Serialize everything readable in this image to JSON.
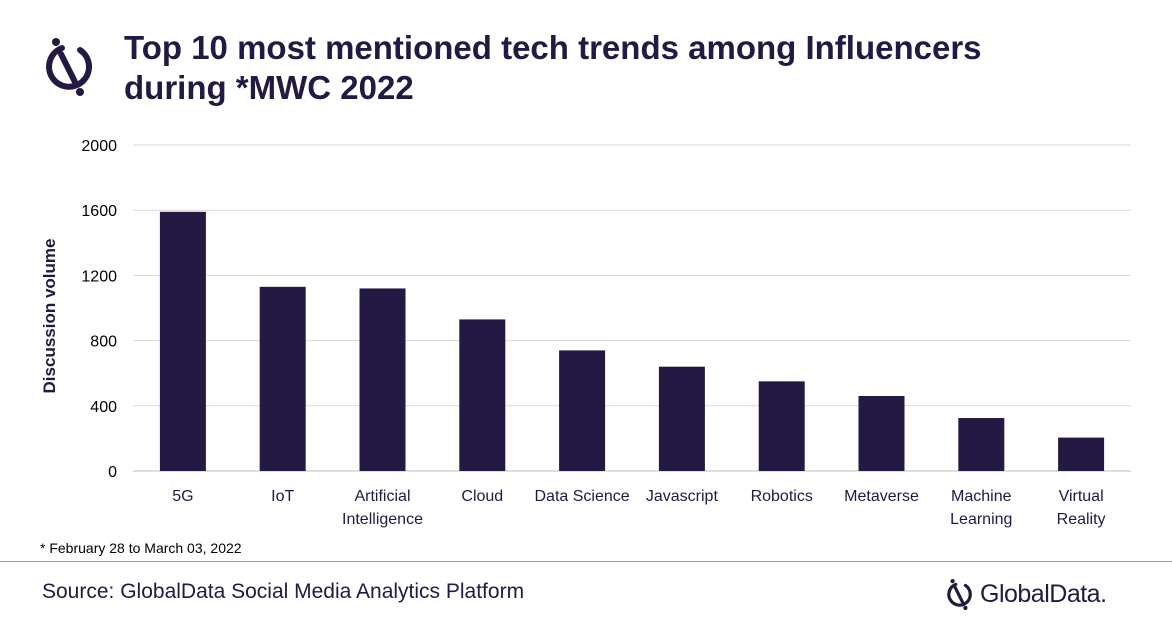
{
  "header": {
    "title_line1": "Top 10 most mentioned tech trends among Influencers",
    "title_line2": "during *MWC 2022"
  },
  "chart_data": {
    "type": "bar",
    "title": "Top 10 most mentioned tech trends among Influencers during *MWC 2022",
    "xlabel": "",
    "ylabel": "Discussion  volume",
    "ylim": [
      0,
      2000
    ],
    "yticks": [
      0,
      400,
      800,
      1200,
      1600,
      2000
    ],
    "grid": true,
    "bar_color": "#231942",
    "categories": [
      [
        "5G"
      ],
      [
        "IoT"
      ],
      [
        "Artificial",
        "Intelligence"
      ],
      [
        "Cloud"
      ],
      [
        "Data Science"
      ],
      [
        "Javascript"
      ],
      [
        "Robotics"
      ],
      [
        "Metaverse"
      ],
      [
        "Machine",
        "Learning"
      ],
      [
        "Virtual",
        "Reality"
      ]
    ],
    "values": [
      1590,
      1130,
      1120,
      930,
      740,
      640,
      550,
      460,
      325,
      205
    ]
  },
  "footnote": "* February 28 to March 03, 2022",
  "source": "Source: GlobalData Social Media Analytics Platform",
  "brand": {
    "name": "GlobalData.",
    "icon": "globaldata-logo-icon"
  },
  "colors": {
    "primary": "#231942",
    "grid": "#d9d9d9"
  }
}
